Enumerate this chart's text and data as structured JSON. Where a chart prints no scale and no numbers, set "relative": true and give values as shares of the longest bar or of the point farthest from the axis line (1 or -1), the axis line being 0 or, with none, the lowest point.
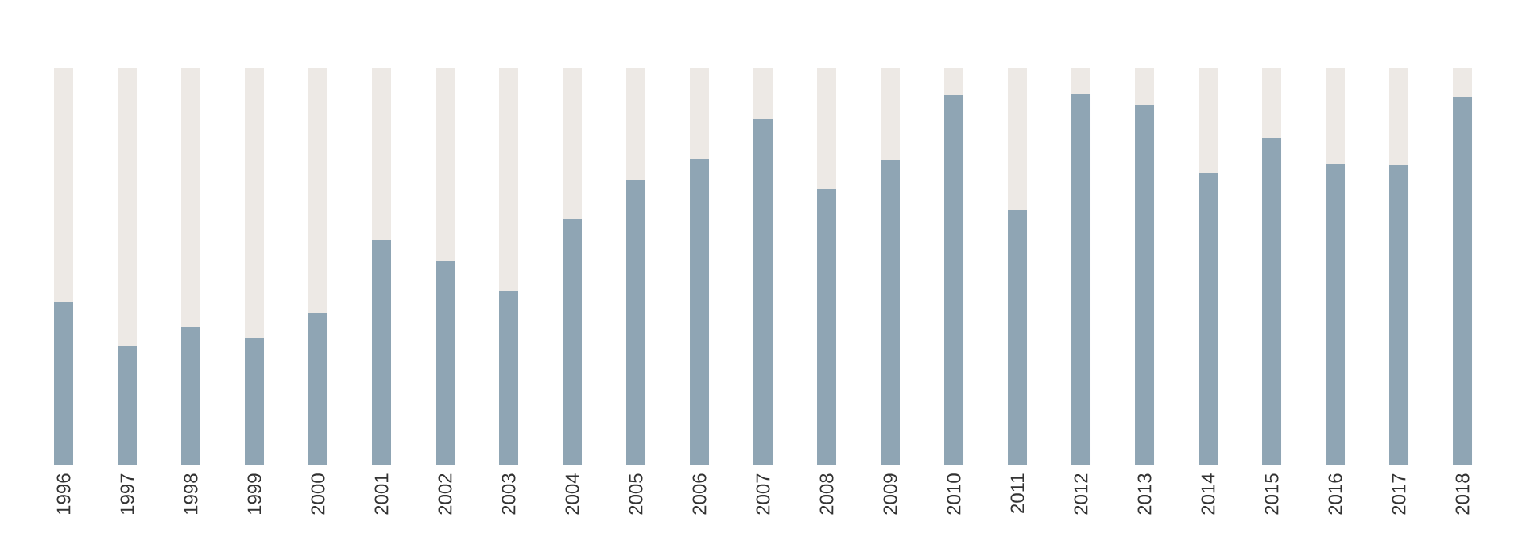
{
  "chart_data": {
    "type": "bar",
    "relative": true,
    "stacked": true,
    "categories": [
      "1996",
      "1997",
      "1998",
      "1999",
      "2000",
      "2001",
      "2002",
      "2003",
      "2004",
      "2005",
      "2006",
      "2007",
      "2008",
      "2009",
      "2010",
      "2011",
      "2012",
      "2013",
      "2014",
      "2015",
      "2016",
      "2017",
      "2018"
    ],
    "series": [
      {
        "color": "#8fa5b4",
        "values": [
          0.412,
          0.3,
          0.348,
          0.32,
          0.384,
          0.568,
          0.516,
          0.44,
          0.62,
          0.72,
          0.772,
          0.872,
          0.696,
          0.768,
          0.932,
          0.644,
          0.936,
          0.908,
          0.736,
          0.824,
          0.76,
          0.756,
          0.928
        ]
      },
      {
        "color": "#ede9e5",
        "values": [
          0.588,
          0.7,
          0.652,
          0.68,
          0.616,
          0.432,
          0.484,
          0.56,
          0.38,
          0.28,
          0.228,
          0.128,
          0.304,
          0.232,
          0.068,
          0.356,
          0.064,
          0.092,
          0.264,
          0.176,
          0.24,
          0.244,
          0.072
        ]
      }
    ]
  }
}
